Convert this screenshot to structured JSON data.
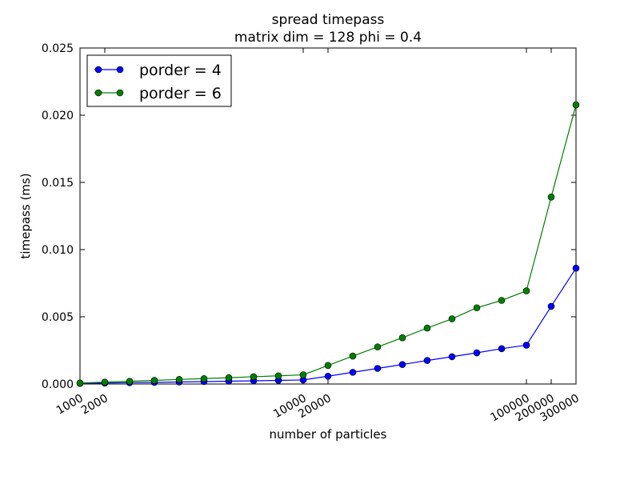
{
  "chart_data": {
    "type": "line",
    "title": "spread timepass",
    "subtitle": "matrix dim = 128 phi = 0.4",
    "xlabel": "number of particles",
    "ylabel": "timepass (ms)",
    "ylim": [
      0,
      0.025
    ],
    "y_ticks": [
      "0.000",
      "0.005",
      "0.010",
      "0.015",
      "0.020",
      "0.025"
    ],
    "x_ticks": [
      {
        "label": "1000",
        "index": 0
      },
      {
        "label": "2000",
        "index": 1
      },
      {
        "label": "10000",
        "index": 9
      },
      {
        "label": "20000",
        "index": 10
      },
      {
        "label": "100000",
        "index": 18
      },
      {
        "label": "200000",
        "index": 19
      },
      {
        "label": "300000",
        "index": 20
      }
    ],
    "x": [
      1000,
      2000,
      3000,
      4000,
      5000,
      6000,
      7000,
      8000,
      9000,
      10000,
      20000,
      30000,
      40000,
      50000,
      60000,
      70000,
      80000,
      90000,
      100000,
      200000,
      300000
    ],
    "series": [
      {
        "name": "porder = 4",
        "color": "#0000ff",
        "values": [
          5e-05,
          7e-05,
          0.0001,
          0.00012,
          0.00015,
          0.00018,
          0.00021,
          0.00024,
          0.00027,
          0.0003,
          0.00058,
          0.00087,
          0.00116,
          0.00145,
          0.00175,
          0.00203,
          0.00232,
          0.00263,
          0.00289,
          0.00578,
          0.00862
        ]
      },
      {
        "name": "porder = 6",
        "color": "#008000",
        "values": [
          7e-05,
          0.00014,
          0.0002,
          0.00027,
          0.00034,
          0.0004,
          0.00047,
          0.00054,
          0.00061,
          0.00068,
          0.00138,
          0.00208,
          0.00276,
          0.00344,
          0.00416,
          0.00485,
          0.00567,
          0.00622,
          0.00693,
          0.01391,
          0.02077
        ]
      }
    ],
    "legend_position": "top-left",
    "grid": false
  }
}
